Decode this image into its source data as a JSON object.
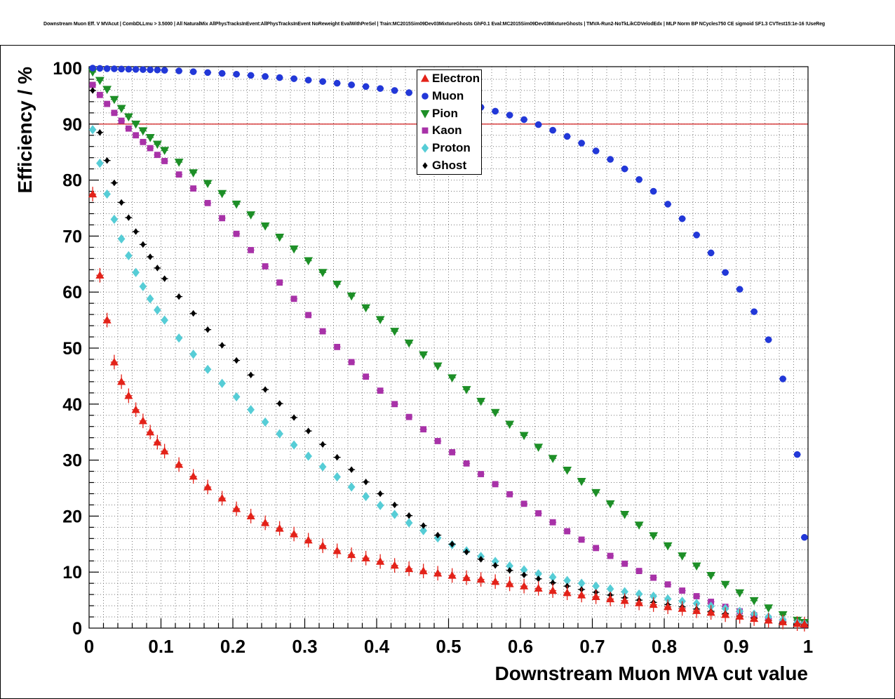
{
  "header": {
    "title": "Downstream Muon Eff. V MVAcut | CombDLLmu > 3.5000 | All NaturalMix AllPhysTracksInEvent:AllPhysTracksInEvent NoReweight EvalWithPreSel | Train:MC2015Sim09Dev03MixtureGhosts GhF0.1 Eval:MC2015Sim09Dev03MixtureGhosts | TMVA-Run2-NoTkLikCDVelodEdx | MLP Norm BP NCycles750 CE sigmoid SF1.3 CVTest15:1e-16 !UseReg"
  },
  "chart_data": {
    "type": "scatter",
    "title": "Downstream Muon Eff. V MVAcut",
    "xlabel": "Downstream Muon MVA cut value",
    "ylabel": "Efficiency / %",
    "xlim": [
      0,
      1
    ],
    "ylim": [
      0,
      100
    ],
    "grid": true,
    "x_minor_step": 0.02,
    "y_minor_step": 2,
    "legend_position": "top-center",
    "x_ticks": [
      0,
      0.1,
      0.2,
      0.3,
      0.4,
      0.5,
      0.6,
      0.7,
      0.8,
      0.9,
      1
    ],
    "y_ticks": [
      0,
      10,
      20,
      30,
      40,
      50,
      60,
      70,
      80,
      90,
      100
    ],
    "reference_line": {
      "y": 90,
      "color": "#cc0000"
    },
    "x": [
      0.005,
      0.015,
      0.025,
      0.035,
      0.045,
      0.055,
      0.065,
      0.075,
      0.085,
      0.095,
      0.105,
      0.125,
      0.145,
      0.165,
      0.185,
      0.205,
      0.225,
      0.245,
      0.265,
      0.285,
      0.305,
      0.325,
      0.345,
      0.365,
      0.385,
      0.405,
      0.425,
      0.445,
      0.465,
      0.485,
      0.505,
      0.525,
      0.545,
      0.565,
      0.585,
      0.605,
      0.625,
      0.645,
      0.665,
      0.685,
      0.705,
      0.725,
      0.745,
      0.765,
      0.785,
      0.805,
      0.825,
      0.845,
      0.865,
      0.885,
      0.905,
      0.925,
      0.945,
      0.965,
      0.985,
      0.995
    ],
    "series": [
      {
        "name": "Electron",
        "marker": "triangle-up",
        "color": "#e32219",
        "err_pct": 1.3,
        "values": [
          77.5,
          63.0,
          55.0,
          47.5,
          44.0,
          41.5,
          39.0,
          37.0,
          35.0,
          33.2,
          31.6,
          29.2,
          27.1,
          25.2,
          23.2,
          21.3,
          20.0,
          18.8,
          17.8,
          16.8,
          15.7,
          14.7,
          13.8,
          13.1,
          12.5,
          11.9,
          11.2,
          10.6,
          10.2,
          9.8,
          9.4,
          9.0,
          8.7,
          8.3,
          7.9,
          7.5,
          7.1,
          6.7,
          6.3,
          5.9,
          5.6,
          5.2,
          4.9,
          4.5,
          4.2,
          3.8,
          3.5,
          3.1,
          2.8,
          2.4,
          2.1,
          1.7,
          1.4,
          1.1,
          0.8,
          0.7
        ]
      },
      {
        "name": "Muon",
        "marker": "circle",
        "color": "#2238d8",
        "err_pct": 0.35,
        "values": [
          100.0,
          99.95,
          99.9,
          99.87,
          99.83,
          99.8,
          99.77,
          99.73,
          99.7,
          99.65,
          99.6,
          99.5,
          99.35,
          99.2,
          99.05,
          98.9,
          98.7,
          98.5,
          98.3,
          98.1,
          97.85,
          97.6,
          97.3,
          97.0,
          96.7,
          96.35,
          96.0,
          95.6,
          95.15,
          94.7,
          94.2,
          93.6,
          93.0,
          92.3,
          91.6,
          90.8,
          89.9,
          88.9,
          87.8,
          86.6,
          85.2,
          83.7,
          82.0,
          80.1,
          78.0,
          75.7,
          73.1,
          70.2,
          67.0,
          63.5,
          60.5,
          56.5,
          51.5,
          44.5,
          31.0,
          16.2
        ]
      },
      {
        "name": "Pion",
        "marker": "triangle-down",
        "color": "#1d8f27",
        "err_pct": 0.3,
        "values": [
          99.3,
          97.8,
          96.2,
          94.4,
          92.8,
          91.3,
          90.0,
          88.8,
          87.6,
          86.4,
          85.3,
          83.2,
          81.3,
          79.4,
          77.6,
          75.7,
          73.8,
          71.8,
          69.8,
          67.7,
          65.6,
          63.5,
          61.4,
          59.3,
          57.2,
          55.1,
          53.0,
          50.9,
          48.8,
          46.8,
          44.7,
          42.6,
          40.5,
          38.5,
          36.4,
          34.4,
          32.3,
          30.3,
          28.2,
          26.2,
          24.2,
          22.2,
          20.3,
          18.4,
          16.5,
          14.7,
          12.9,
          11.1,
          9.4,
          7.8,
          6.3,
          4.9,
          3.6,
          2.4,
          1.4,
          1.0
        ]
      },
      {
        "name": "Kaon",
        "marker": "square",
        "color": "#a832a8",
        "err_pct": 0.45,
        "values": [
          97.0,
          95.2,
          93.6,
          92.0,
          90.6,
          89.2,
          88.0,
          86.8,
          85.7,
          84.5,
          83.4,
          81.0,
          78.5,
          75.9,
          73.2,
          70.4,
          67.5,
          64.6,
          61.7,
          58.8,
          55.9,
          53.0,
          50.2,
          47.5,
          44.9,
          42.4,
          40.0,
          37.7,
          35.5,
          33.4,
          31.4,
          29.4,
          27.5,
          25.7,
          23.9,
          22.2,
          20.5,
          18.9,
          17.3,
          15.8,
          14.3,
          12.9,
          11.5,
          10.2,
          9.0,
          7.8,
          6.7,
          5.7,
          4.7,
          3.8,
          3.0,
          2.3,
          1.7,
          1.2,
          0.8,
          0.6
        ]
      },
      {
        "name": "Proton",
        "marker": "diamond",
        "color": "#56cdd6",
        "err_pct": 0.55,
        "values": [
          89.0,
          83.0,
          77.5,
          73.0,
          69.5,
          66.5,
          63.5,
          61.0,
          58.8,
          56.8,
          55.0,
          51.8,
          48.9,
          46.2,
          43.7,
          41.3,
          39.0,
          36.8,
          34.7,
          32.7,
          30.7,
          28.8,
          27.0,
          25.2,
          23.5,
          21.9,
          20.3,
          18.8,
          17.4,
          16.1,
          14.9,
          13.8,
          12.8,
          11.9,
          11.1,
          10.4,
          9.7,
          9.1,
          8.5,
          8.0,
          7.5,
          7.0,
          6.5,
          6.1,
          5.7,
          5.2,
          4.8,
          4.4,
          3.9,
          3.5,
          3.0,
          2.5,
          2.0,
          1.5,
          1.0,
          0.8
        ]
      },
      {
        "name": "Ghost",
        "marker": "small-diamond",
        "color": "#000000",
        "err_pct": 0.5,
        "values": [
          96.0,
          88.5,
          83.5,
          79.5,
          76.0,
          73.3,
          70.8,
          68.5,
          66.3,
          64.3,
          62.4,
          59.2,
          56.2,
          53.3,
          50.5,
          47.8,
          45.2,
          42.6,
          40.1,
          37.6,
          35.2,
          32.8,
          30.5,
          28.3,
          26.1,
          24.0,
          22.0,
          20.1,
          18.3,
          16.6,
          15.0,
          13.6,
          12.3,
          11.2,
          10.3,
          9.5,
          8.8,
          8.1,
          7.5,
          6.9,
          6.4,
          5.9,
          5.4,
          5.0,
          4.6,
          4.2,
          3.8,
          3.4,
          3.0,
          2.6,
          2.2,
          1.8,
          1.4,
          1.0,
          0.7,
          0.5
        ]
      }
    ]
  }
}
